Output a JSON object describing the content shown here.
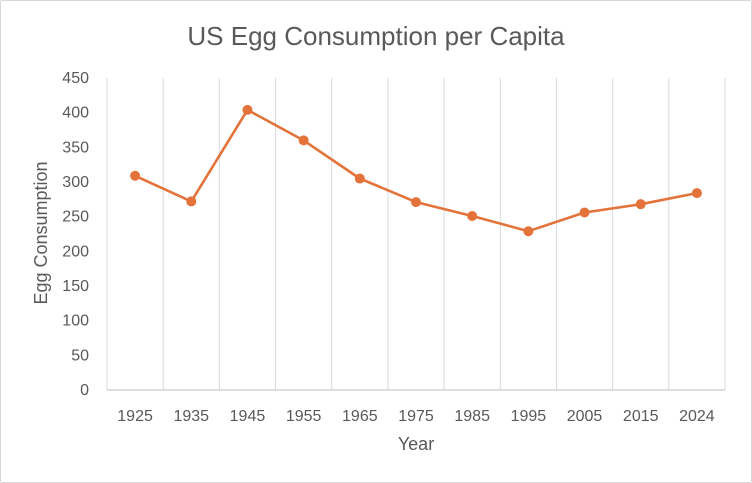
{
  "chart_data": {
    "type": "line",
    "title": "US Egg Consumption per Capita",
    "xlabel": "Year",
    "ylabel": "Egg Consumption",
    "categories": [
      "1925",
      "1935",
      "1945",
      "1955",
      "1965",
      "1975",
      "1985",
      "1995",
      "2005",
      "2015",
      "2024"
    ],
    "series": [
      {
        "values": [
          309,
          272,
          404,
          360,
          305,
          271,
          251,
          229,
          256,
          268,
          284
        ]
      }
    ],
    "ylim": [
      0,
      450
    ],
    "yticks": [
      "0",
      "50",
      "100",
      "150",
      "200",
      "250",
      "300",
      "350",
      "400",
      "450"
    ],
    "grid": "vertical",
    "legend": "none",
    "colors": {
      "line": "#e3733a",
      "text": "#595959",
      "grid": "#d9d9d9"
    }
  }
}
